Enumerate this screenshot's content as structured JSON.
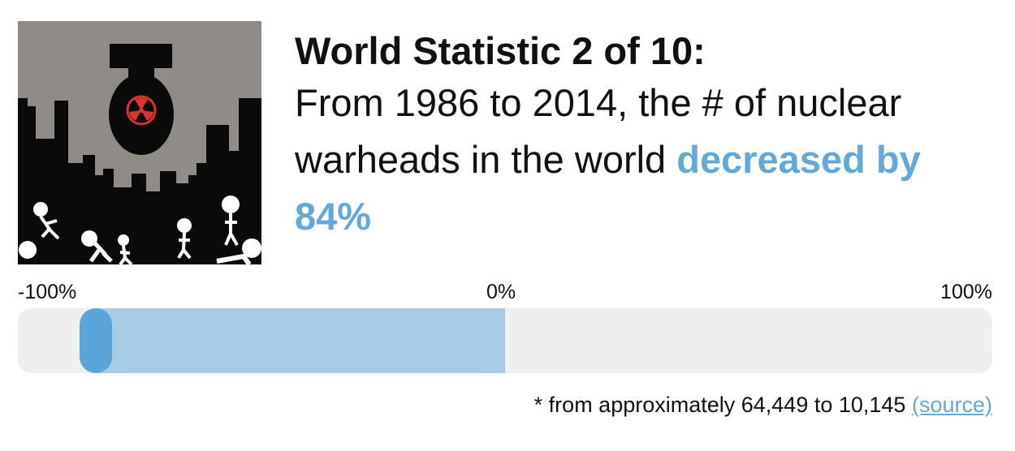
{
  "statistic": {
    "heading": "World Statistic 2 of 10:",
    "sentence_start": "From 1986 to 2014, the # of nuclear warheads in the world",
    "sentence_highlight": "decreased by 84%"
  },
  "scale": {
    "min_label": "-100%",
    "mid_label": "0%",
    "max_label": "100%",
    "min_value": -100,
    "max_value": 100,
    "change_percent": -84
  },
  "footnote": {
    "text": "* from approximately 64,449 to 10,145",
    "source_label": "(source)"
  },
  "colors": {
    "highlight": "#62a9d9",
    "fill": "#a6cbe3",
    "marker": "#5ca5d8",
    "track": "#efefef"
  },
  "image": {
    "icon": "nuclear-bomb-city-icon"
  }
}
